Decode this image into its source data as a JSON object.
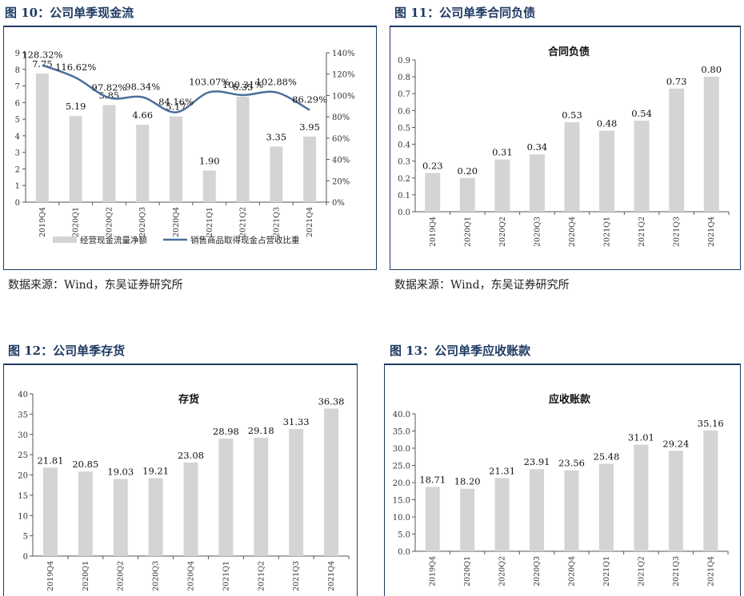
{
  "colors": {
    "bar": "#d4d4d4",
    "line": "#4a6e9a",
    "axis": "#555555",
    "title": "#1f3b63"
  },
  "fig10": {
    "title": "图 10：公司单季现金流",
    "source": "数据来源：Wind，东吴证券研究所",
    "chart_data": {
      "type": "bar+line",
      "title": "",
      "categories": [
        "2019Q4",
        "2020Q1",
        "2020Q2",
        "2020Q3",
        "2020Q4",
        "2021Q1",
        "2021Q2",
        "2021Q3",
        "2021Q4"
      ],
      "series": [
        {
          "name": "经营现金流量净额",
          "type": "bar",
          "axis": "left",
          "values": [
            7.75,
            5.19,
            5.85,
            4.66,
            5.17,
            1.9,
            6.35,
            3.35,
            3.95
          ],
          "labels": [
            "7.75",
            "5.19",
            "5.85",
            "4.66",
            "5.17",
            "1.90",
            "6.35",
            "3.35",
            "3.95"
          ]
        },
        {
          "name": "销售商品取得现金占营收比重",
          "type": "line",
          "axis": "right",
          "values": [
            128.32,
            116.62,
            97.82,
            98.34,
            84.16,
            103.07,
            100.31,
            102.88,
            86.29
          ],
          "labels": [
            "128.32%",
            "116.62%",
            "97.82%",
            "98.34%",
            "84.16%",
            "103.07%",
            "100.31%",
            "102.88%",
            "86.29%"
          ]
        }
      ],
      "ylim": [
        0,
        9
      ],
      "yticks": [
        "0",
        "1",
        "2",
        "3",
        "4",
        "5",
        "6",
        "7",
        "8",
        "9"
      ],
      "y2lim": [
        0,
        140
      ],
      "y2ticks": [
        "0%",
        "20%",
        "40%",
        "60%",
        "80%",
        "100%",
        "120%",
        "140%"
      ],
      "legend": "bottom"
    }
  },
  "fig11": {
    "title": "图 11：公司单季合同负债",
    "source": "数据来源：Wind，东吴证券研究所",
    "chart_data": {
      "type": "bar",
      "title": "合同负债",
      "categories": [
        "2019Q4",
        "2020Q1",
        "2020Q2",
        "2020Q3",
        "2020Q4",
        "2021Q1",
        "2021Q2",
        "2021Q3",
        "2021Q4"
      ],
      "values": [
        0.23,
        0.2,
        0.31,
        0.34,
        0.53,
        0.48,
        0.54,
        0.73,
        0.8
      ],
      "labels": [
        "0.23",
        "0.20",
        "0.31",
        "0.34",
        "0.53",
        "0.48",
        "0.54",
        "0.73",
        "0.80"
      ],
      "ylim": [
        0,
        0.9
      ],
      "yticks": [
        "0.0",
        "0.1",
        "0.2",
        "0.3",
        "0.4",
        "0.5",
        "0.6",
        "0.7",
        "0.8",
        "0.9"
      ]
    }
  },
  "fig12": {
    "title": "图 12：公司单季存货",
    "chart_data": {
      "type": "bar",
      "title": "存货",
      "categories": [
        "2019Q4",
        "2020Q1",
        "2020Q2",
        "2020Q3",
        "2020Q4",
        "2021Q1",
        "2021Q2",
        "2021Q3",
        "2021Q4"
      ],
      "values": [
        21.81,
        20.85,
        19.03,
        19.21,
        23.08,
        28.98,
        29.18,
        31.33,
        36.38
      ],
      "labels": [
        "21.81",
        "20.85",
        "19.03",
        "19.21",
        "23.08",
        "28.98",
        "29.18",
        "31.33",
        "36.38"
      ],
      "ylim": [
        0,
        40
      ],
      "yticks": [
        "0",
        "5",
        "10",
        "15",
        "20",
        "25",
        "30",
        "35",
        "40"
      ]
    }
  },
  "fig13": {
    "title": "图 13：公司单季应收账款",
    "chart_data": {
      "type": "bar",
      "title": "应收账款",
      "categories": [
        "2019Q4",
        "2020Q1",
        "2020Q2",
        "2020Q3",
        "2020Q4",
        "2021Q1",
        "2021Q2",
        "2021Q3",
        "2021Q4"
      ],
      "values": [
        18.71,
        18.2,
        21.31,
        23.91,
        23.56,
        25.48,
        31.01,
        29.24,
        35.16
      ],
      "labels": [
        "18.71",
        "18.20",
        "21.31",
        "23.91",
        "23.56",
        "25.48",
        "31.01",
        "29.24",
        "35.16"
      ],
      "ylim": [
        0,
        40
      ],
      "yticks": [
        "0.0",
        "5.0",
        "10.0",
        "15.0",
        "20.0",
        "25.0",
        "30.0",
        "35.0",
        "40.0"
      ]
    }
  }
}
